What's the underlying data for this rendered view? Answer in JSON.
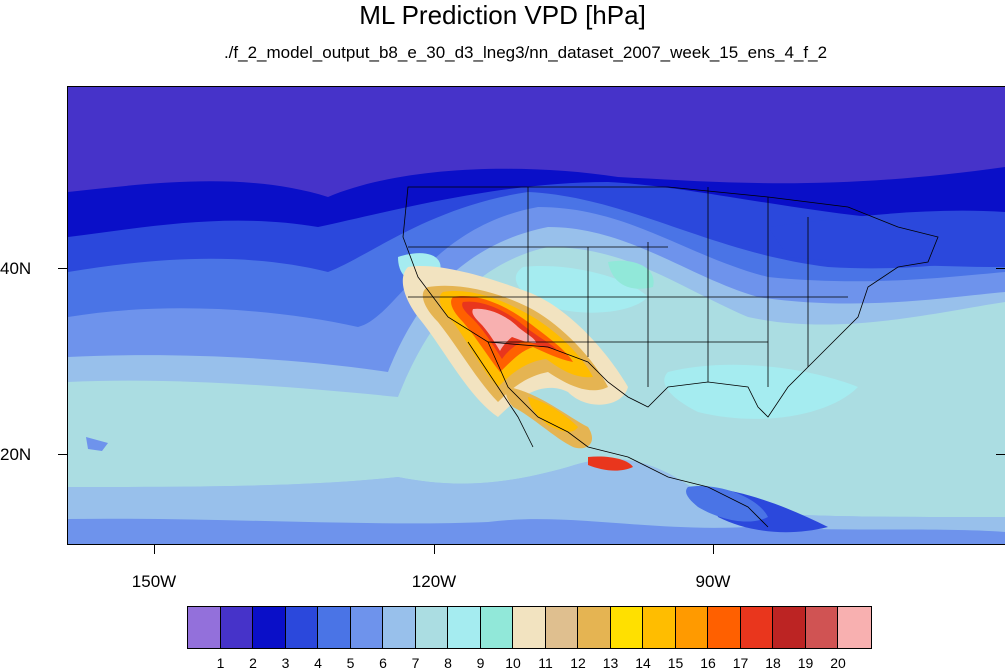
{
  "title": "ML Prediction VPD [hPa]",
  "subtitle": "./f_2_model_output_b8_e_30_d3_lneg3/nn_dataset_2007_week_15_ens_4_f_2",
  "lat_labels": [
    "40N",
    "20N"
  ],
  "lon_labels": [
    "150W",
    "120W",
    "90W"
  ],
  "colorbar": {
    "colors": [
      "#9370db",
      "#4633c9",
      "#0a0fc8",
      "#2b48dc",
      "#4a74e6",
      "#6e93ec",
      "#98c0eb",
      "#abdde2",
      "#a5ecf0",
      "#91e8d9",
      "#f2e3c0",
      "#dfbf8f",
      "#e5b452",
      "#ffe000",
      "#ffbd00",
      "#ff9a00",
      "#ff6000",
      "#e9361d",
      "#bc2423",
      "#d05353",
      "#f8b0b0"
    ],
    "labels": [
      "1",
      "2",
      "3",
      "4",
      "5",
      "6",
      "7",
      "8",
      "9",
      "10",
      "11",
      "12",
      "13",
      "14",
      "15",
      "16",
      "17",
      "18",
      "19",
      "20"
    ]
  }
}
